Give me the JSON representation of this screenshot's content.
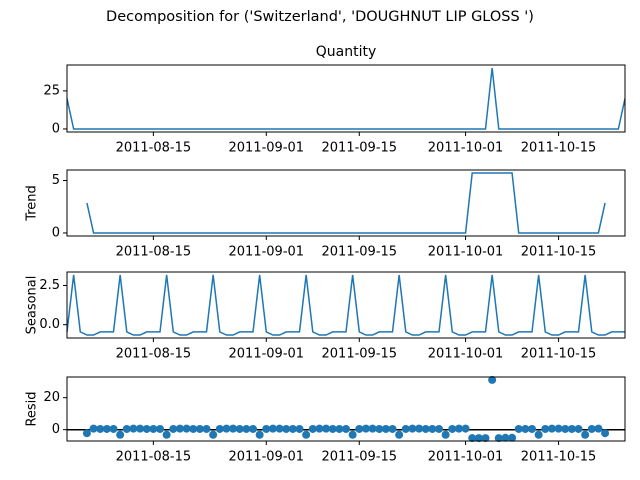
{
  "title": "Decomposition for ('Switzerland', 'DOUGHNUT LIP GLOSS ')",
  "chart_data": [
    {
      "type": "line",
      "title": "Quantity",
      "color": "#1f77b4",
      "x": [
        "2011-08-02",
        "2011-08-03",
        "2011-08-04",
        "2011-08-05",
        "2011-08-06",
        "2011-08-07",
        "2011-08-08",
        "2011-08-09",
        "2011-08-10",
        "2011-08-11",
        "2011-08-12",
        "2011-08-13",
        "2011-08-14",
        "2011-08-15",
        "2011-08-16",
        "2011-08-17",
        "2011-08-18",
        "2011-08-19",
        "2011-08-20",
        "2011-08-21",
        "2011-08-22",
        "2011-08-23",
        "2011-08-24",
        "2011-08-25",
        "2011-08-26",
        "2011-08-27",
        "2011-08-28",
        "2011-08-29",
        "2011-08-30",
        "2011-08-31",
        "2011-09-01",
        "2011-09-02",
        "2011-09-03",
        "2011-09-04",
        "2011-09-05",
        "2011-09-06",
        "2011-09-07",
        "2011-09-08",
        "2011-09-09",
        "2011-09-10",
        "2011-09-11",
        "2011-09-12",
        "2011-09-13",
        "2011-09-14",
        "2011-09-15",
        "2011-09-16",
        "2011-09-17",
        "2011-09-18",
        "2011-09-19",
        "2011-09-20",
        "2011-09-21",
        "2011-09-22",
        "2011-09-23",
        "2011-09-24",
        "2011-09-25",
        "2011-09-26",
        "2011-09-27",
        "2011-09-28",
        "2011-09-29",
        "2011-09-30",
        "2011-10-01",
        "2011-10-02",
        "2011-10-03",
        "2011-10-04",
        "2011-10-05",
        "2011-10-06",
        "2011-10-07",
        "2011-10-08",
        "2011-10-09",
        "2011-10-10",
        "2011-10-11",
        "2011-10-12",
        "2011-10-13",
        "2011-10-14",
        "2011-10-15",
        "2011-10-16",
        "2011-10-17",
        "2011-10-18",
        "2011-10-19",
        "2011-10-20",
        "2011-10-21",
        "2011-10-22",
        "2011-10-23",
        "2011-10-24",
        "2011-10-25"
      ],
      "values": [
        20,
        0,
        0,
        0,
        0,
        0,
        0,
        0,
        0,
        0,
        0,
        0,
        0,
        0,
        0,
        0,
        0,
        0,
        0,
        0,
        0,
        0,
        0,
        0,
        0,
        0,
        0,
        0,
        0,
        0,
        0,
        0,
        0,
        0,
        0,
        0,
        0,
        0,
        0,
        0,
        0,
        0,
        0,
        0,
        0,
        0,
        0,
        0,
        0,
        0,
        0,
        0,
        0,
        0,
        0,
        0,
        0,
        0,
        0,
        0,
        0,
        0,
        0,
        0,
        40,
        0,
        0,
        0,
        0,
        0,
        0,
        0,
        0,
        0,
        0,
        0,
        0,
        0,
        0,
        0,
        0,
        0,
        0,
        0,
        20
      ],
      "xlim": [
        "2011-08-02",
        "2011-10-25"
      ],
      "xticks": [
        "2011-08-15",
        "2011-09-01",
        "2011-09-15",
        "2011-10-01",
        "2011-10-15"
      ],
      "ylim": [
        -2,
        42
      ],
      "yticks": [
        0,
        25
      ]
    },
    {
      "type": "line",
      "ylabel": "Trend",
      "color": "#1f77b4",
      "x": [
        "2011-08-02",
        "2011-08-03",
        "2011-08-04",
        "2011-08-05",
        "2011-08-06",
        "2011-08-07",
        "2011-08-08",
        "2011-08-09",
        "2011-08-10",
        "2011-08-11",
        "2011-08-12",
        "2011-08-13",
        "2011-08-14",
        "2011-08-15",
        "2011-08-16",
        "2011-08-17",
        "2011-08-18",
        "2011-08-19",
        "2011-08-20",
        "2011-08-21",
        "2011-08-22",
        "2011-08-23",
        "2011-08-24",
        "2011-08-25",
        "2011-08-26",
        "2011-08-27",
        "2011-08-28",
        "2011-08-29",
        "2011-08-30",
        "2011-08-31",
        "2011-09-01",
        "2011-09-02",
        "2011-09-03",
        "2011-09-04",
        "2011-09-05",
        "2011-09-06",
        "2011-09-07",
        "2011-09-08",
        "2011-09-09",
        "2011-09-10",
        "2011-09-11",
        "2011-09-12",
        "2011-09-13",
        "2011-09-14",
        "2011-09-15",
        "2011-09-16",
        "2011-09-17",
        "2011-09-18",
        "2011-09-19",
        "2011-09-20",
        "2011-09-21",
        "2011-09-22",
        "2011-09-23",
        "2011-09-24",
        "2011-09-25",
        "2011-09-26",
        "2011-09-27",
        "2011-09-28",
        "2011-09-29",
        "2011-09-30",
        "2011-10-01",
        "2011-10-02",
        "2011-10-03",
        "2011-10-04",
        "2011-10-05",
        "2011-10-06",
        "2011-10-07",
        "2011-10-08",
        "2011-10-09",
        "2011-10-10",
        "2011-10-11",
        "2011-10-12",
        "2011-10-13",
        "2011-10-14",
        "2011-10-15",
        "2011-10-16",
        "2011-10-17",
        "2011-10-18",
        "2011-10-19",
        "2011-10-20",
        "2011-10-21",
        "2011-10-22",
        "2011-10-23",
        "2011-10-24",
        "2011-10-25"
      ],
      "values": [
        null,
        null,
        null,
        2.86,
        0,
        0,
        0,
        0,
        0,
        0,
        0,
        0,
        0,
        0,
        0,
        0,
        0,
        0,
        0,
        0,
        0,
        0,
        0,
        0,
        0,
        0,
        0,
        0,
        0,
        0,
        0,
        0,
        0,
        0,
        0,
        0,
        0,
        0,
        0,
        0,
        0,
        0,
        0,
        0,
        0,
        0,
        0,
        0,
        0,
        0,
        0,
        0,
        0,
        0,
        0,
        0,
        0,
        0,
        0,
        0,
        0,
        5.71,
        5.71,
        5.71,
        5.71,
        5.71,
        5.71,
        5.71,
        0,
        0,
        0,
        0,
        0,
        0,
        0,
        0,
        0,
        0,
        0,
        0,
        0,
        2.86,
        null,
        null,
        null
      ],
      "xlim": [
        "2011-08-02",
        "2011-10-25"
      ],
      "xticks": [
        "2011-08-15",
        "2011-09-01",
        "2011-09-15",
        "2011-10-01",
        "2011-10-15"
      ],
      "ylim": [
        -0.29,
        6.0
      ],
      "yticks": [
        0,
        5
      ]
    },
    {
      "type": "line",
      "ylabel": "Seasonal",
      "color": "#1f77b4",
      "x": [
        "2011-08-02",
        "2011-08-03",
        "2011-08-04",
        "2011-08-05",
        "2011-08-06",
        "2011-08-07",
        "2011-08-08",
        "2011-08-09",
        "2011-08-10",
        "2011-08-11",
        "2011-08-12",
        "2011-08-13",
        "2011-08-14",
        "2011-08-15",
        "2011-08-16",
        "2011-08-17",
        "2011-08-18",
        "2011-08-19",
        "2011-08-20",
        "2011-08-21",
        "2011-08-22",
        "2011-08-23",
        "2011-08-24",
        "2011-08-25",
        "2011-08-26",
        "2011-08-27",
        "2011-08-28",
        "2011-08-29",
        "2011-08-30",
        "2011-08-31",
        "2011-09-01",
        "2011-09-02",
        "2011-09-03",
        "2011-09-04",
        "2011-09-05",
        "2011-09-06",
        "2011-09-07",
        "2011-09-08",
        "2011-09-09",
        "2011-09-10",
        "2011-09-11",
        "2011-09-12",
        "2011-09-13",
        "2011-09-14",
        "2011-09-15",
        "2011-09-16",
        "2011-09-17",
        "2011-09-18",
        "2011-09-19",
        "2011-09-20",
        "2011-09-21",
        "2011-09-22",
        "2011-09-23",
        "2011-09-24",
        "2011-09-25",
        "2011-09-26",
        "2011-09-27",
        "2011-09-28",
        "2011-09-29",
        "2011-09-30",
        "2011-10-01",
        "2011-10-02",
        "2011-10-03",
        "2011-10-04",
        "2011-10-05",
        "2011-10-06",
        "2011-10-07",
        "2011-10-08",
        "2011-10-09",
        "2011-10-10",
        "2011-10-11",
        "2011-10-12",
        "2011-10-13",
        "2011-10-14",
        "2011-10-15",
        "2011-10-16",
        "2011-10-17",
        "2011-10-18",
        "2011-10-19",
        "2011-10-20",
        "2011-10-21",
        "2011-10-22",
        "2011-10-23",
        "2011-10-24",
        "2011-10-25"
      ],
      "values": [
        -0.46,
        3.17,
        -0.46,
        -0.66,
        -0.66,
        -0.46,
        -0.46,
        -0.46,
        3.17,
        -0.46,
        -0.66,
        -0.66,
        -0.46,
        -0.46,
        -0.46,
        3.17,
        -0.46,
        -0.66,
        -0.66,
        -0.46,
        -0.46,
        -0.46,
        3.17,
        -0.46,
        -0.66,
        -0.66,
        -0.46,
        -0.46,
        -0.46,
        3.17,
        -0.46,
        -0.66,
        -0.66,
        -0.46,
        -0.46,
        -0.46,
        3.17,
        -0.46,
        -0.66,
        -0.66,
        -0.46,
        -0.46,
        -0.46,
        3.17,
        -0.46,
        -0.66,
        -0.66,
        -0.46,
        -0.46,
        -0.46,
        3.17,
        -0.46,
        -0.66,
        -0.66,
        -0.46,
        -0.46,
        -0.46,
        3.17,
        -0.46,
        -0.66,
        -0.66,
        -0.46,
        -0.46,
        -0.46,
        3.17,
        -0.46,
        -0.66,
        -0.66,
        -0.46,
        -0.46,
        -0.46,
        3.17,
        -0.46,
        -0.66,
        -0.66,
        -0.46,
        -0.46,
        -0.46,
        3.17,
        -0.46,
        -0.66,
        -0.66,
        -0.46,
        -0.46,
        -0.46
      ],
      "xlim": [
        "2011-08-02",
        "2011-10-25"
      ],
      "xticks": [
        "2011-08-15",
        "2011-09-01",
        "2011-09-15",
        "2011-10-01",
        "2011-10-15"
      ],
      "ylim": [
        -0.85,
        3.36
      ],
      "yticks": [
        {
          "value": 0,
          "label": "0.0"
        },
        2.5
      ]
    },
    {
      "type": "scatter",
      "ylabel": "Resid",
      "color": "#1f77b4",
      "hline": 0,
      "x": [
        "2011-08-02",
        "2011-08-03",
        "2011-08-04",
        "2011-08-05",
        "2011-08-06",
        "2011-08-07",
        "2011-08-08",
        "2011-08-09",
        "2011-08-10",
        "2011-08-11",
        "2011-08-12",
        "2011-08-13",
        "2011-08-14",
        "2011-08-15",
        "2011-08-16",
        "2011-08-17",
        "2011-08-18",
        "2011-08-19",
        "2011-08-20",
        "2011-08-21",
        "2011-08-22",
        "2011-08-23",
        "2011-08-24",
        "2011-08-25",
        "2011-08-26",
        "2011-08-27",
        "2011-08-28",
        "2011-08-29",
        "2011-08-30",
        "2011-08-31",
        "2011-09-01",
        "2011-09-02",
        "2011-09-03",
        "2011-09-04",
        "2011-09-05",
        "2011-09-06",
        "2011-09-07",
        "2011-09-08",
        "2011-09-09",
        "2011-09-10",
        "2011-09-11",
        "2011-09-12",
        "2011-09-13",
        "2011-09-14",
        "2011-09-15",
        "2011-09-16",
        "2011-09-17",
        "2011-09-18",
        "2011-09-19",
        "2011-09-20",
        "2011-09-21",
        "2011-09-22",
        "2011-09-23",
        "2011-09-24",
        "2011-09-25",
        "2011-09-26",
        "2011-09-27",
        "2011-09-28",
        "2011-09-29",
        "2011-09-30",
        "2011-10-01",
        "2011-10-02",
        "2011-10-03",
        "2011-10-04",
        "2011-10-05",
        "2011-10-06",
        "2011-10-07",
        "2011-10-08",
        "2011-10-09",
        "2011-10-10",
        "2011-10-11",
        "2011-10-12",
        "2011-10-13",
        "2011-10-14",
        "2011-10-15",
        "2011-10-16",
        "2011-10-17",
        "2011-10-18",
        "2011-10-19",
        "2011-10-20",
        "2011-10-21",
        "2011-10-22",
        "2011-10-23",
        "2011-10-24",
        "2011-10-25"
      ],
      "values": [
        null,
        null,
        null,
        -2.2,
        0.66,
        0.46,
        0.46,
        0.46,
        -3.17,
        0.46,
        0.66,
        0.66,
        0.46,
        0.46,
        0.46,
        -3.17,
        0.46,
        0.66,
        0.66,
        0.46,
        0.46,
        0.46,
        -3.17,
        0.46,
        0.66,
        0.66,
        0.46,
        0.46,
        0.46,
        -3.17,
        0.46,
        0.66,
        0.66,
        0.46,
        0.46,
        0.46,
        -3.17,
        0.46,
        0.66,
        0.66,
        0.46,
        0.46,
        0.46,
        -3.17,
        0.46,
        0.66,
        0.66,
        0.46,
        0.46,
        0.46,
        -3.17,
        0.46,
        0.66,
        0.66,
        0.46,
        0.46,
        0.46,
        -3.17,
        0.46,
        0.66,
        0.66,
        -5.25,
        -5.25,
        -5.25,
        31.11,
        -5.25,
        -5.06,
        -5.06,
        0.46,
        0.46,
        0.46,
        -3.17,
        0.46,
        0.66,
        0.66,
        0.46,
        0.46,
        0.46,
        -3.17,
        0.46,
        0.66,
        -2.2,
        null,
        null,
        null
      ],
      "xlim": [
        "2011-08-02",
        "2011-10-25"
      ],
      "xticks": [
        "2011-08-15",
        "2011-09-01",
        "2011-09-15",
        "2011-10-01",
        "2011-10-15"
      ],
      "ylim": [
        -7.07,
        32.93
      ],
      "yticks": [
        0,
        20
      ]
    }
  ]
}
